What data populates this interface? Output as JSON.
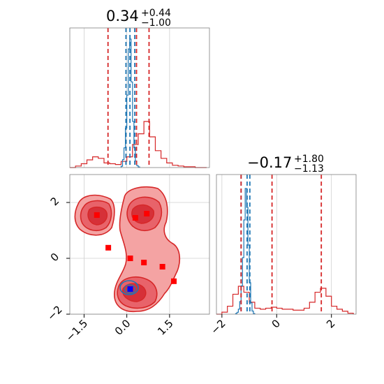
{
  "colors": {
    "red": "#d62728",
    "blue": "#1f77b4",
    "marker_red": "#ff0000",
    "marker_blue": "#0000ff",
    "fill_light": "#f4a3a3",
    "fill_mid": "#e8636a",
    "fill_dark": "#d63038",
    "grid": "#cfcfcf",
    "frame": "#7f7f7f"
  },
  "chart_data": [
    {
      "type": "histogram",
      "panel": "x-marginal",
      "title_value": "0.34",
      "title_plus": "+0.44",
      "title_minus": "−1.00",
      "xlim": [
        -2.0,
        2.9
      ],
      "grid": true,
      "red_quantiles": [
        -0.66,
        0.34,
        0.78
      ],
      "blue_quantiles": [
        -0.03,
        0.11,
        0.28
      ],
      "red_hist": {
        "edges": [
          -2.0,
          -1.8,
          -1.6,
          -1.4,
          -1.2,
          -1.0,
          -0.8,
          -0.6,
          -0.4,
          -0.2,
          0.0,
          0.2,
          0.4,
          0.6,
          0.8,
          1.0,
          1.2,
          1.4,
          1.6,
          1.8,
          2.0,
          2.2,
          2.4,
          2.6,
          2.8
        ],
        "counts": [
          0,
          2,
          5,
          10,
          14,
          12,
          6,
          5,
          4,
          8,
          14,
          30,
          44,
          60,
          40,
          22,
          12,
          6,
          3,
          2,
          1,
          1,
          0,
          0
        ]
      },
      "blue_hist": {
        "edges": [
          -0.2,
          -0.15,
          -0.1,
          -0.05,
          0.0,
          0.05,
          0.1,
          0.15,
          0.2,
          0.25,
          0.3,
          0.35,
          0.4,
          0.45
        ],
        "counts": [
          2,
          12,
          30,
          60,
          110,
          180,
          195,
          130,
          70,
          30,
          10,
          3,
          1
        ]
      }
    },
    {
      "type": "contour",
      "panel": "joint",
      "xlim": [
        -2.0,
        2.9
      ],
      "ylim": [
        -2.0,
        3.0
      ],
      "grid": true,
      "red_points": [
        {
          "x": -1.05,
          "y": 1.55
        },
        {
          "x": 0.3,
          "y": 1.45
        },
        {
          "x": 0.7,
          "y": 1.6
        },
        {
          "x": -0.65,
          "y": 0.38
        },
        {
          "x": 0.12,
          "y": 0.0
        },
        {
          "x": 0.6,
          "y": -0.15
        },
        {
          "x": 1.25,
          "y": -0.3
        },
        {
          "x": 1.65,
          "y": -0.82
        }
      ],
      "blue_points": [
        {
          "x": 0.12,
          "y": -1.1
        }
      ]
    },
    {
      "type": "histogram",
      "panel": "y-marginal",
      "title_value": "−0.17",
      "title_plus": "+1.80",
      "title_minus": "−1.13",
      "xlim": [
        -2.2,
        2.9
      ],
      "grid": true,
      "red_quantiles": [
        -1.3,
        -0.17,
        1.63
      ],
      "blue_quantiles": [
        -1.3,
        -1.08,
        -0.98
      ],
      "red_hist": {
        "edges": [
          -2.2,
          -2.0,
          -1.8,
          -1.6,
          -1.4,
          -1.2,
          -1.0,
          -0.8,
          -0.6,
          -0.4,
          -0.2,
          0.0,
          0.2,
          0.4,
          0.6,
          0.8,
          1.0,
          1.2,
          1.4,
          1.6,
          1.8,
          2.0,
          2.2,
          2.4,
          2.6,
          2.8
        ],
        "counts": [
          0,
          2,
          8,
          20,
          28,
          22,
          12,
          6,
          5,
          6,
          7,
          6,
          5,
          5,
          4,
          4,
          6,
          12,
          22,
          26,
          18,
          8,
          5,
          3,
          1
        ]
      },
      "blue_hist": {
        "edges": [
          -1.5,
          -1.45,
          -1.4,
          -1.35,
          -1.3,
          -1.25,
          -1.2,
          -1.15,
          -1.1,
          -1.05,
          -1.0,
          -0.95,
          -0.9,
          -0.85,
          -0.8
        ],
        "counts": [
          1,
          3,
          8,
          20,
          45,
          90,
          150,
          200,
          170,
          110,
          50,
          18,
          5,
          1
        ]
      }
    }
  ],
  "ticks": {
    "joint_x": [
      {
        "v": -1.5,
        "label": "−1.5"
      },
      {
        "v": 0.0,
        "label": "0.0"
      },
      {
        "v": 1.5,
        "label": "1.5"
      }
    ],
    "joint_y": [
      {
        "v": 2,
        "label": "2"
      },
      {
        "v": 0,
        "label": "0"
      },
      {
        "v": -2,
        "label": "−2"
      }
    ],
    "marg2_x": [
      {
        "v": -2,
        "label": "−2"
      },
      {
        "v": 0,
        "label": "0"
      },
      {
        "v": 2,
        "label": "2"
      }
    ]
  }
}
